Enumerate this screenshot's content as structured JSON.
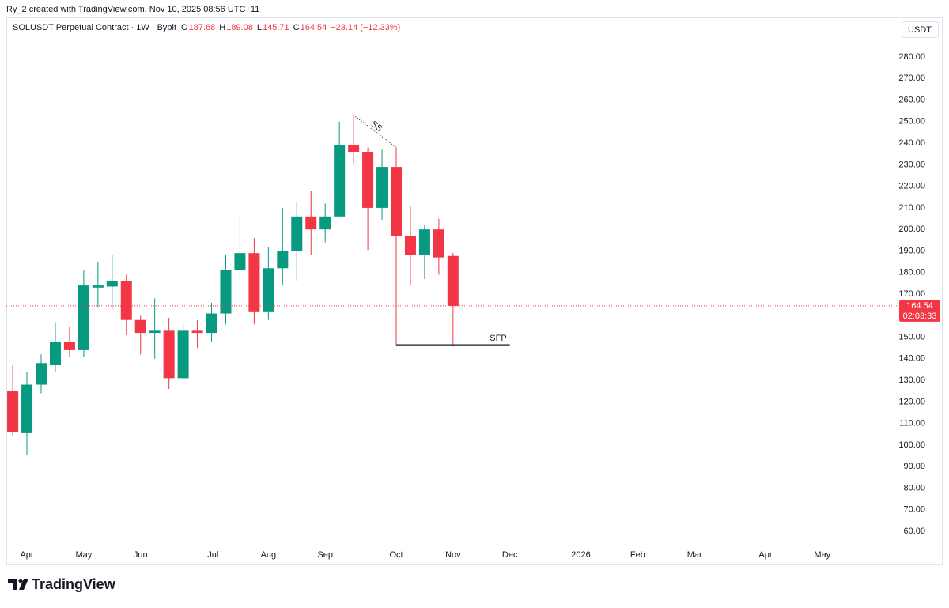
{
  "header": "Ry_2 created with TradingView.com, Nov 10, 2025 08:56 UTC+11",
  "brand": "TradingView",
  "chart_data": {
    "type": "candlestick",
    "title": "SOLUSDT Perpetual Contract · 1W · Bybit",
    "legend": [
      {
        "label": "O",
        "value": 187.68
      },
      {
        "label": "H",
        "value": 189.08
      },
      {
        "label": "L",
        "value": 145.71
      },
      {
        "label": "C",
        "value": 164.54
      }
    ],
    "change": "−23.14 (−12.33%)",
    "currency": "USDT",
    "last_price": {
      "value": 164.54,
      "countdown": "02:03:33"
    },
    "up_color": "#089981",
    "down_color": "#f23645",
    "x": [
      0,
      1,
      2,
      3,
      4,
      5,
      6,
      7,
      8,
      9,
      10,
      11,
      12,
      13,
      14,
      15,
      16,
      17,
      18,
      19,
      20,
      21,
      22,
      23,
      24,
      25,
      26,
      27,
      28,
      29,
      30,
      31
    ],
    "open": [
      125,
      105.5,
      128,
      137,
      148,
      144,
      173,
      173.5,
      176,
      158,
      152,
      153,
      131,
      153,
      152,
      161,
      181,
      189,
      162,
      182,
      190,
      206,
      200,
      206,
      239,
      236,
      210,
      229,
      197,
      188,
      200,
      187.68
    ],
    "high": [
      137,
      134,
      142,
      157,
      155,
      181,
      185,
      188,
      179,
      160,
      168,
      159,
      156,
      158,
      166,
      188,
      207,
      196,
      192,
      210,
      213,
      218,
      212,
      250,
      253,
      238,
      237,
      238,
      211,
      202,
      205,
      189.08
    ],
    "low": [
      104,
      95.5,
      124,
      134,
      141,
      141,
      164,
      163,
      151,
      142,
      140,
      126,
      130,
      145,
      148,
      156,
      176,
      156,
      158,
      174,
      176,
      188,
      194,
      206,
      230,
      190.5,
      204.5,
      146.5,
      174,
      177,
      179,
      145.71
    ],
    "close": [
      106,
      128,
      138,
      148,
      144,
      174,
      174,
      176,
      158,
      152,
      153,
      131,
      153,
      152,
      161,
      181,
      189,
      162,
      182,
      190,
      206,
      200,
      206,
      239,
      236,
      210,
      229,
      197,
      188,
      200,
      187,
      164.54
    ],
    "xlim": [
      -0.45,
      62.3
    ],
    "xticks": [
      {
        "value": 1,
        "label": "Apr"
      },
      {
        "value": 5,
        "label": "May"
      },
      {
        "value": 9,
        "label": "Jun"
      },
      {
        "value": 14.1,
        "label": "Jul"
      },
      {
        "value": 18,
        "label": "Aug"
      },
      {
        "value": 22,
        "label": "Sep"
      },
      {
        "value": 27,
        "label": "Oct"
      },
      {
        "value": 31,
        "label": "Nov"
      },
      {
        "value": 35,
        "label": "Dec"
      },
      {
        "value": 40,
        "label": "2026"
      },
      {
        "value": 44,
        "label": "Feb"
      },
      {
        "value": 48,
        "label": "Mar"
      },
      {
        "value": 53,
        "label": "Apr"
      },
      {
        "value": 57,
        "label": "May"
      }
    ],
    "ylim": [
      53.4,
      288.8
    ],
    "yticks": [
      {
        "value": 60,
        "label": "60.00"
      },
      {
        "value": 70,
        "label": "70.00"
      },
      {
        "value": 80,
        "label": "80.00"
      },
      {
        "value": 90,
        "label": "90.00"
      },
      {
        "value": 100,
        "label": "100.00"
      },
      {
        "value": 110,
        "label": "110.00"
      },
      {
        "value": 120,
        "label": "120.00"
      },
      {
        "value": 130,
        "label": "130.00"
      },
      {
        "value": 140,
        "label": "140.00"
      },
      {
        "value": 150,
        "label": "150.00"
      },
      {
        "value": 160,
        "label": "160.00"
      },
      {
        "value": 170,
        "label": "170.00"
      },
      {
        "value": 180,
        "label": "180.00"
      },
      {
        "value": 190,
        "label": "190.00"
      },
      {
        "value": 200,
        "label": "200.00"
      },
      {
        "value": 210,
        "label": "210.00"
      },
      {
        "value": 220,
        "label": "220.00"
      },
      {
        "value": 230,
        "label": "230.00"
      },
      {
        "value": 240,
        "label": "240.00"
      },
      {
        "value": 250,
        "label": "250.00"
      },
      {
        "value": 260,
        "label": "260.00"
      },
      {
        "value": 270,
        "label": "270.00"
      },
      {
        "value": 280,
        "label": "280.00"
      }
    ],
    "annotations": [
      {
        "text": "SS",
        "from": 24,
        "to": 27
      },
      {
        "text": "SFP",
        "value": 146.5,
        "x": [
          27,
          35
        ]
      }
    ]
  }
}
